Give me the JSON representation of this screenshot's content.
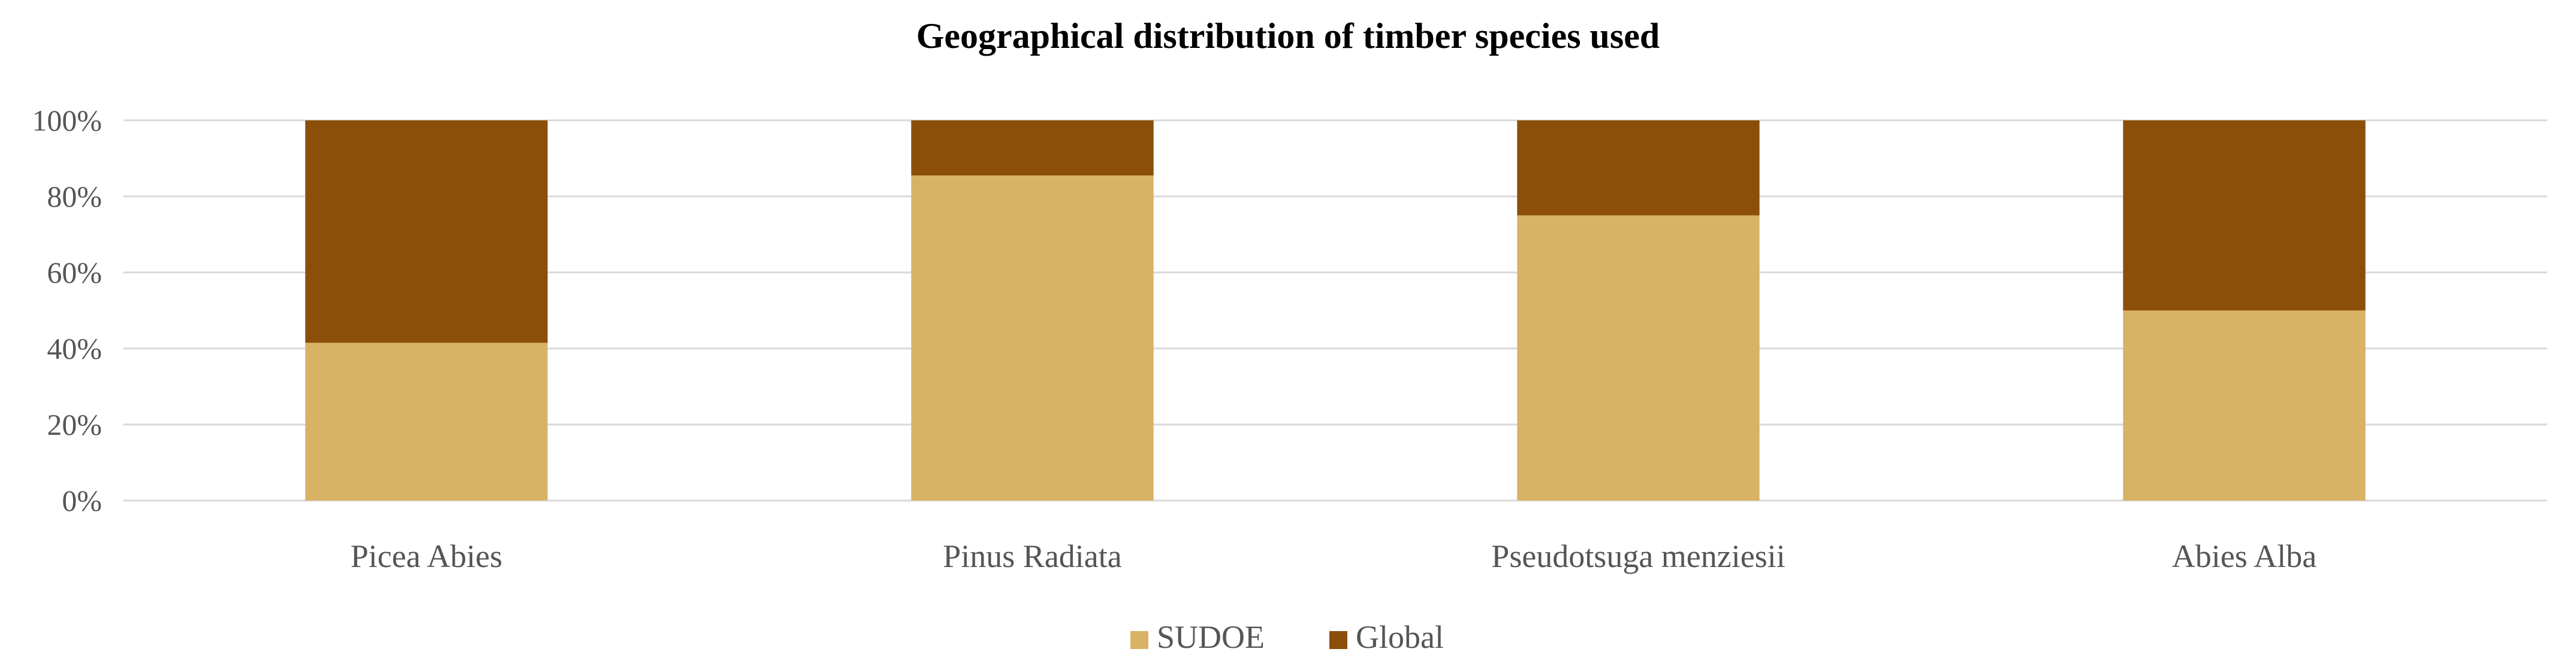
{
  "chart_data": {
    "type": "bar",
    "stacked": true,
    "percent_stacked": true,
    "title": "Geographical distribution of timber species used",
    "xlabel": "",
    "ylabel": "",
    "categories": [
      "Picea Abies",
      "Pinus Radiata",
      "Pseudotsuga menziesii",
      "Abies Alba"
    ],
    "series": [
      {
        "name": "SUDOE",
        "values": [
          41.5,
          85.5,
          75,
          50
        ],
        "color": "#D8B365"
      },
      {
        "name": "Global",
        "values": [
          58.5,
          14.5,
          25,
          50
        ],
        "color": "#8B4F0A"
      }
    ],
    "ylim": [
      0,
      100
    ],
    "yticks": [
      0,
      20,
      40,
      60,
      80,
      100
    ],
    "ytick_labels": [
      "0%",
      "20%",
      "40%",
      "60%",
      "80%",
      "100%"
    ],
    "grid": true,
    "legend_position": "bottom"
  }
}
